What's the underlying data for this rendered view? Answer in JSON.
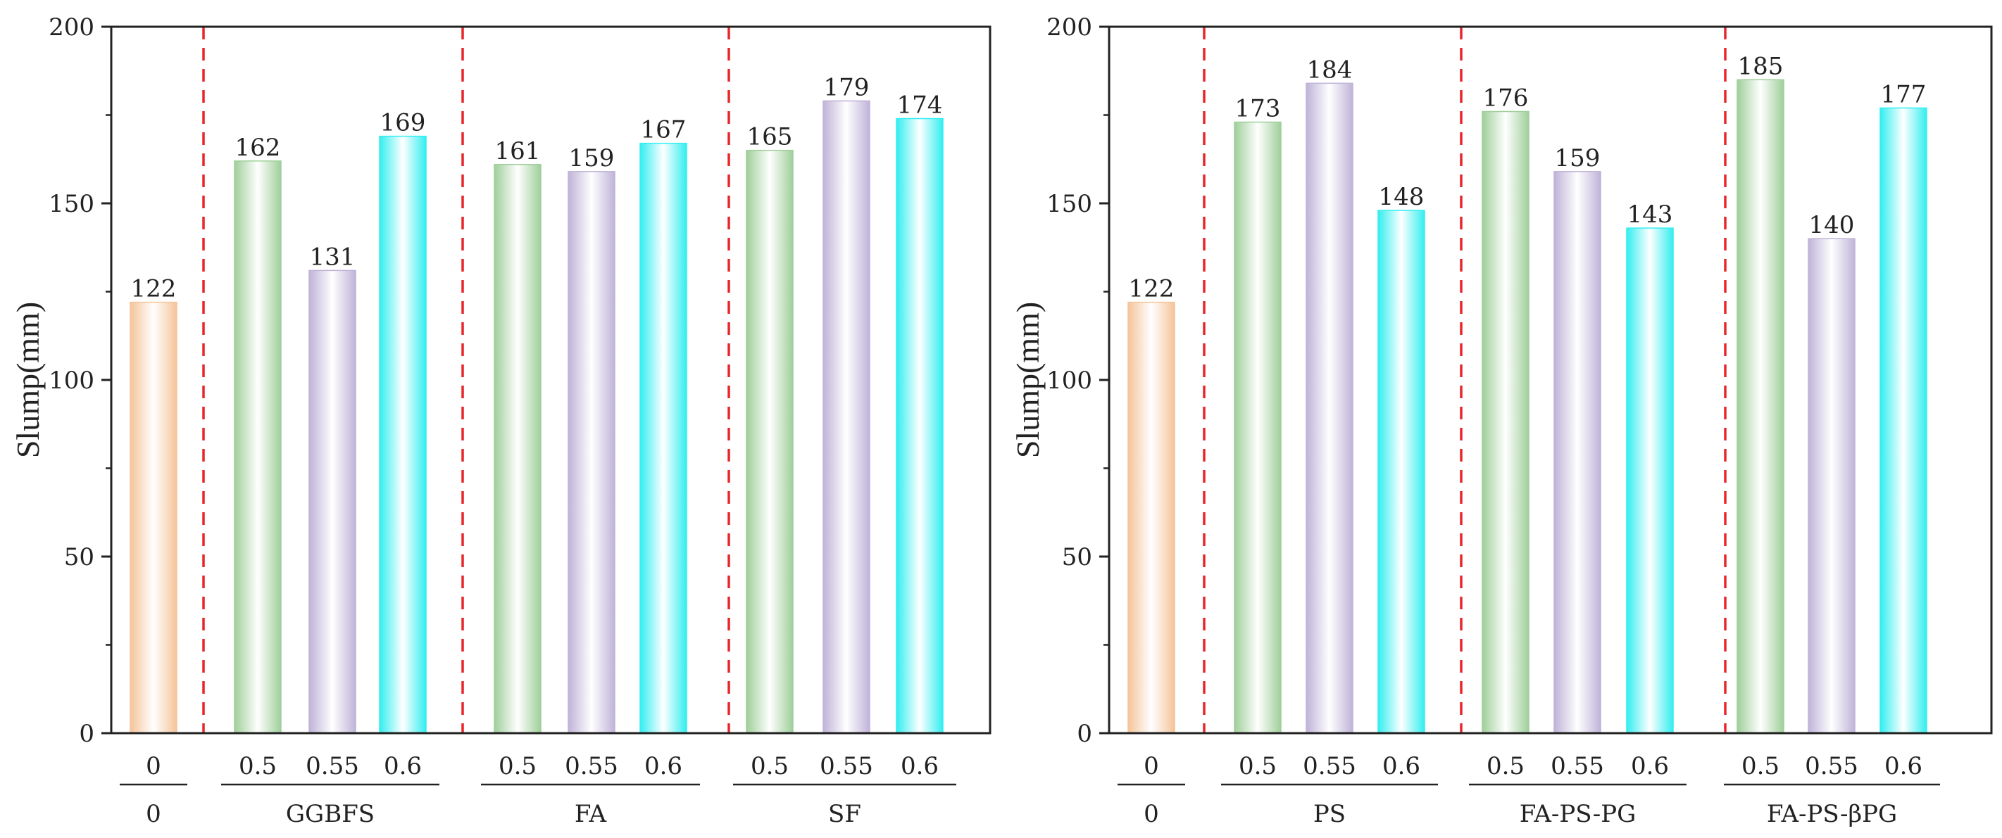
{
  "colors": {
    "control": "#f5c49a",
    "0.5": "#9fcf9a",
    "0.55": "#bfb3d8",
    "0.6": "#33eef0",
    "divider": "#e8262a"
  },
  "chart_data": [
    {
      "type": "bar",
      "ylabel": "Slump(mm)",
      "ylim": [
        0,
        200
      ],
      "yticks": [
        0,
        50,
        100,
        150,
        200
      ],
      "groups": [
        {
          "name": "0",
          "bars": [
            {
              "category": "0",
              "value": 122,
              "color_key": "control"
            }
          ]
        },
        {
          "name": "GGBFS",
          "bars": [
            {
              "category": "0.5",
              "value": 162,
              "color_key": "0.5"
            },
            {
              "category": "0.55",
              "value": 131,
              "color_key": "0.55"
            },
            {
              "category": "0.6",
              "value": 169,
              "color_key": "0.6"
            }
          ]
        },
        {
          "name": "FA",
          "bars": [
            {
              "category": "0.5",
              "value": 161,
              "color_key": "0.5"
            },
            {
              "category": "0.55",
              "value": 159,
              "color_key": "0.55"
            },
            {
              "category": "0.6",
              "value": 167,
              "color_key": "0.6"
            }
          ]
        },
        {
          "name": "SF",
          "bars": [
            {
              "category": "0.5",
              "value": 165,
              "color_key": "0.5"
            },
            {
              "category": "0.55",
              "value": 179,
              "color_key": "0.55"
            },
            {
              "category": "0.6",
              "value": 174,
              "color_key": "0.6"
            }
          ]
        }
      ]
    },
    {
      "type": "bar",
      "ylabel": "Slump(mm)",
      "ylim": [
        0,
        200
      ],
      "yticks": [
        0,
        50,
        100,
        150,
        200
      ],
      "groups": [
        {
          "name": "0",
          "bars": [
            {
              "category": "0",
              "value": 122,
              "color_key": "control"
            }
          ]
        },
        {
          "name": "PS",
          "bars": [
            {
              "category": "0.5",
              "value": 173,
              "color_key": "0.5"
            },
            {
              "category": "0.55",
              "value": 184,
              "color_key": "0.55"
            },
            {
              "category": "0.6",
              "value": 148,
              "color_key": "0.6"
            }
          ]
        },
        {
          "name": "FA-PS-PG",
          "bars": [
            {
              "category": "0.5",
              "value": 176,
              "color_key": "0.5"
            },
            {
              "category": "0.55",
              "value": 159,
              "color_key": "0.55"
            },
            {
              "category": "0.6",
              "value": 143,
              "color_key": "0.6"
            }
          ]
        },
        {
          "name": "FA-PS-βPG",
          "bars": [
            {
              "category": "0.5",
              "value": 185,
              "color_key": "0.5"
            },
            {
              "category": "0.55",
              "value": 140,
              "color_key": "0.55"
            },
            {
              "category": "0.6",
              "value": 177,
              "color_key": "0.6"
            }
          ]
        }
      ]
    }
  ]
}
